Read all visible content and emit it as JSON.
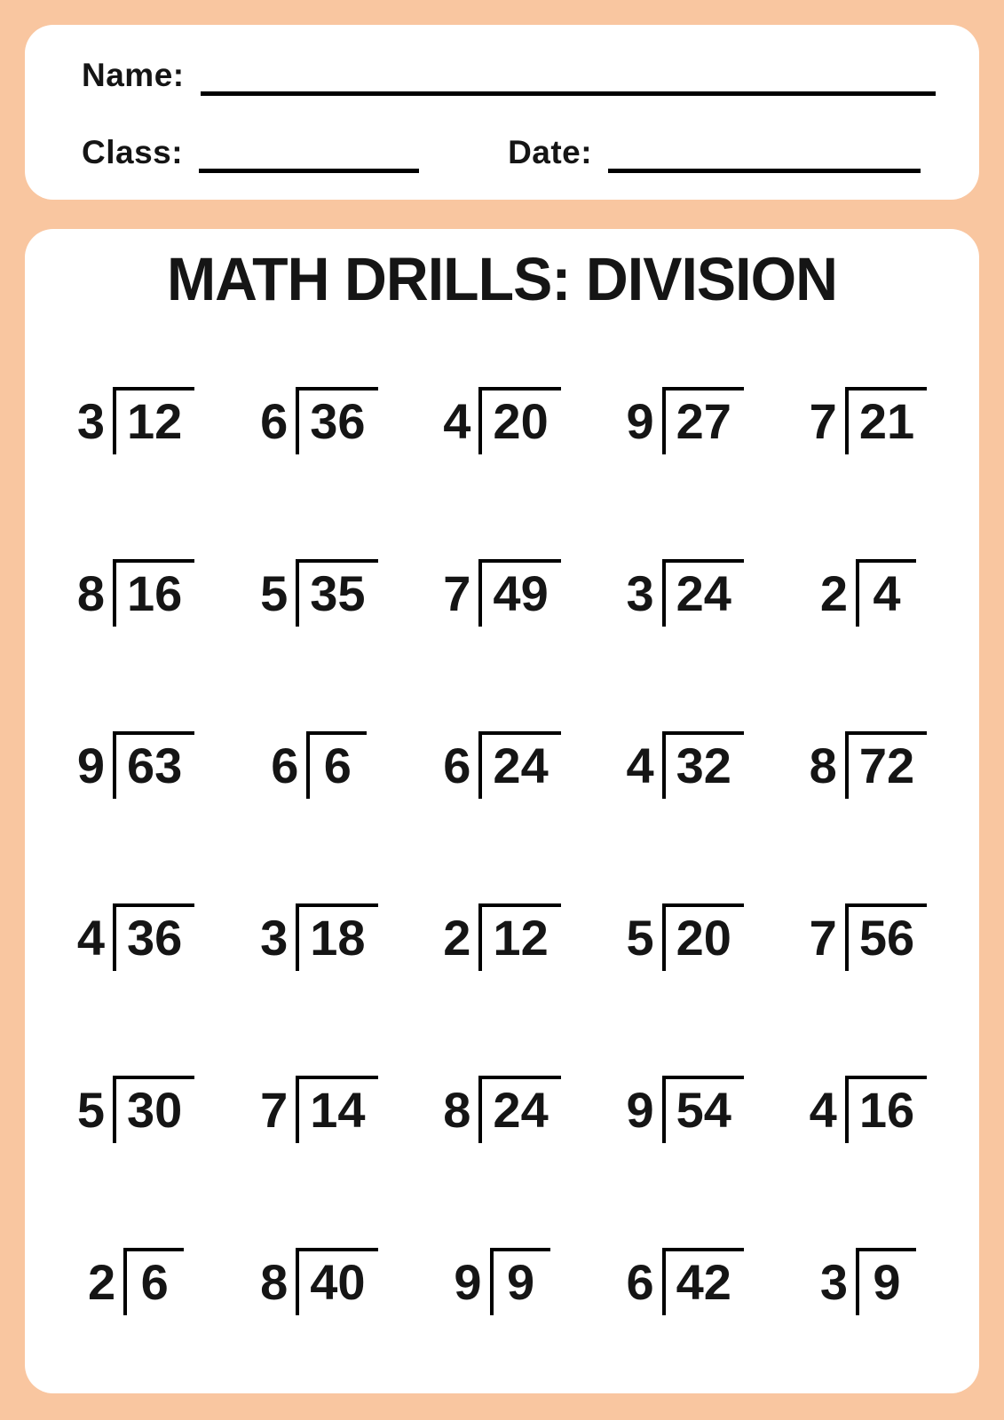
{
  "colors": {
    "background": "#F9C6A0",
    "panel": "#FFFFFF",
    "ink": "#151515"
  },
  "header_fields": {
    "name_label": "Name:",
    "class_label": "Class:",
    "date_label": "Date:"
  },
  "worksheet": {
    "title": "MATH DRILLS: DIVISION",
    "columns": 5,
    "rows": 6,
    "problems": [
      {
        "divisor": 3,
        "dividend": 12
      },
      {
        "divisor": 6,
        "dividend": 36
      },
      {
        "divisor": 4,
        "dividend": 20
      },
      {
        "divisor": 9,
        "dividend": 27
      },
      {
        "divisor": 7,
        "dividend": 21
      },
      {
        "divisor": 8,
        "dividend": 16
      },
      {
        "divisor": 5,
        "dividend": 35
      },
      {
        "divisor": 7,
        "dividend": 49
      },
      {
        "divisor": 3,
        "dividend": 24
      },
      {
        "divisor": 2,
        "dividend": 4
      },
      {
        "divisor": 9,
        "dividend": 63
      },
      {
        "divisor": 6,
        "dividend": 6
      },
      {
        "divisor": 6,
        "dividend": 24
      },
      {
        "divisor": 4,
        "dividend": 32
      },
      {
        "divisor": 8,
        "dividend": 72
      },
      {
        "divisor": 4,
        "dividend": 36
      },
      {
        "divisor": 3,
        "dividend": 18
      },
      {
        "divisor": 2,
        "dividend": 12
      },
      {
        "divisor": 5,
        "dividend": 20
      },
      {
        "divisor": 7,
        "dividend": 56
      },
      {
        "divisor": 5,
        "dividend": 30
      },
      {
        "divisor": 7,
        "dividend": 14
      },
      {
        "divisor": 8,
        "dividend": 24
      },
      {
        "divisor": 9,
        "dividend": 54
      },
      {
        "divisor": 4,
        "dividend": 16
      },
      {
        "divisor": 2,
        "dividend": 6
      },
      {
        "divisor": 8,
        "dividend": 40
      },
      {
        "divisor": 9,
        "dividend": 9
      },
      {
        "divisor": 6,
        "dividend": 42
      },
      {
        "divisor": 3,
        "dividend": 9
      }
    ]
  }
}
